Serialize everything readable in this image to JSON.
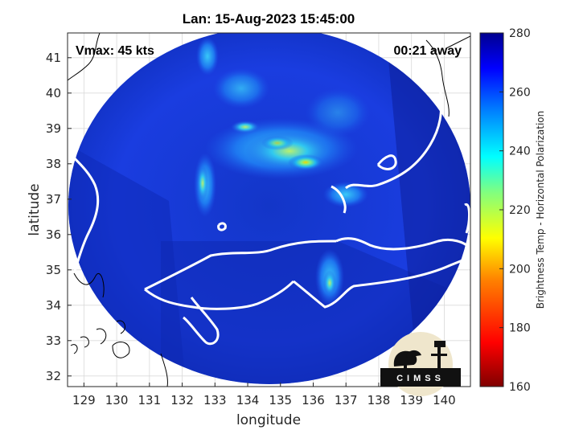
{
  "title": "Lan: 15-Aug-2023 15:45:00",
  "vmax_label": "Vmax: 45 kts",
  "time_away_label": "00:21 away",
  "x_axis": {
    "label": "longitude",
    "ticks": [
      129,
      130,
      131,
      132,
      133,
      134,
      135,
      136,
      137,
      138,
      139,
      140
    ],
    "range": [
      128.5,
      140.8
    ]
  },
  "y_axis": {
    "label": "latitude",
    "ticks": [
      32,
      33,
      34,
      35,
      36,
      37,
      38,
      39,
      40,
      41
    ],
    "range": [
      31.7,
      41.7
    ]
  },
  "colorbar": {
    "title": "Brightness Temp - Horizontal Polarization",
    "ticks": [
      160,
      180,
      200,
      220,
      240,
      260,
      280
    ],
    "range": [
      160,
      280
    ],
    "colormap": [
      "#7f0000",
      "#ff0000",
      "#ff8000",
      "#ffff00",
      "#80ff80",
      "#00ffff",
      "#0080ff",
      "#0000ff",
      "#00008f"
    ]
  },
  "swath": {
    "center_lon": 134.8,
    "center_lat": 35.5,
    "background_temp_k": 265
  },
  "storm_features": [
    {
      "lon": 135.0,
      "lat": 38.0,
      "temp_k": 238,
      "desc": "convective band"
    },
    {
      "lon": 132.6,
      "lat": 37.4,
      "temp_k": 232,
      "desc": "western band"
    },
    {
      "lon": 136.2,
      "lat": 34.7,
      "temp_k": 240,
      "desc": "southern band"
    },
    {
      "lon": 134.0,
      "lat": 39.0,
      "temp_k": 245,
      "desc": "northern band"
    }
  ],
  "logo": {
    "text": "CIMSS",
    "icon": "cimss-satellite-dish-logo"
  }
}
